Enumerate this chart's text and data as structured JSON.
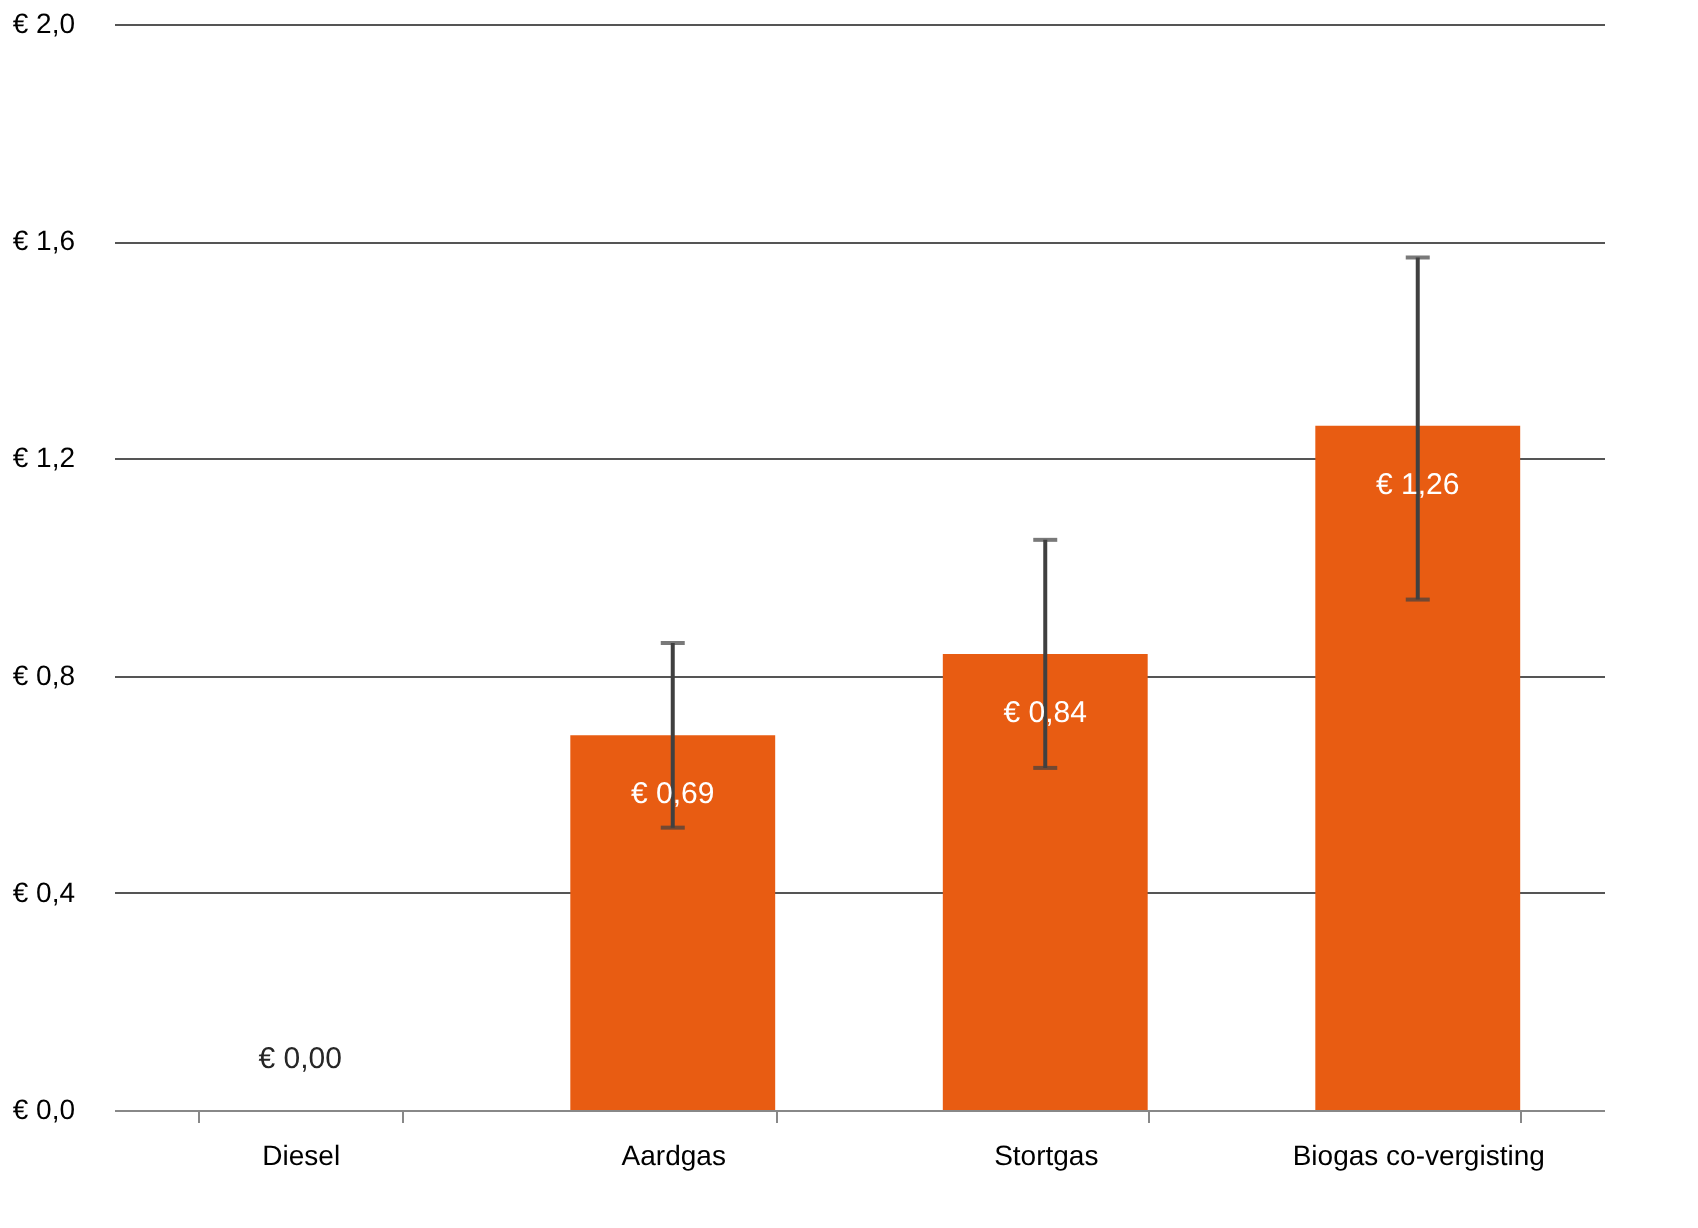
{
  "chart_data": {
    "type": "bar",
    "categories": [
      "Diesel",
      "Aardgas",
      "Stortgas",
      "Biogas co-vergisting"
    ],
    "values": [
      0.0,
      0.69,
      0.84,
      1.26
    ],
    "color": "#e85c12",
    "errors": [
      null,
      [
        0.52,
        0.86
      ],
      [
        0.63,
        1.05
      ],
      [
        0.94,
        1.57
      ]
    ],
    "value_labels": [
      "€ 0,00",
      "€ 0,69",
      "€ 0,84",
      "€ 1,26"
    ],
    "ylim": [
      0,
      2.0
    ],
    "yticks": [
      {
        "value": 0,
        "label": "€ 0,0"
      },
      {
        "value": 0.4,
        "label": "€ 0,4"
      },
      {
        "value": 0.8,
        "label": "€ 0,8"
      },
      {
        "value": 1.2,
        "label": "€ 1,2"
      },
      {
        "value": 1.6,
        "label": "€ 1,6"
      },
      {
        "value": 2.0,
        "label": "€ 2,0"
      }
    ],
    "grid": "y"
  }
}
